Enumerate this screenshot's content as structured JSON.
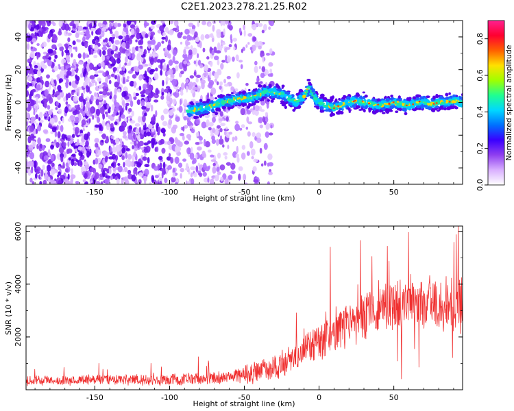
{
  "title": "C2E1.2023.278.21.25.R02",
  "colors": {
    "snr_line": "#f03030",
    "spectral_base": "#7a22ee",
    "spectral_ridge": "#2060ff"
  },
  "chart_data": [
    {
      "type": "heatmap",
      "title": "",
      "xlabel": "Height of straight line (km)",
      "ylabel": "Frequency (Hz)",
      "xlim": [
        -196,
        96
      ],
      "ylim": [
        -50,
        50
      ],
      "xticks": [
        "-150",
        "-100",
        "-50",
        "0",
        "50"
      ],
      "xtick_values": [
        -150,
        -100,
        -50,
        0,
        50
      ],
      "yticks": [
        "-40",
        "-20",
        "0",
        "20",
        "40"
      ],
      "ytick_values": [
        -40,
        -20,
        0,
        20,
        40
      ],
      "ridge": {
        "x": [
          -85,
          -75,
          -65,
          -55,
          -45,
          -40,
          -35,
          -30,
          -25,
          -20,
          -15,
          -10,
          -7,
          -3,
          0,
          5,
          10,
          15,
          20,
          25,
          30,
          35,
          40,
          45,
          50,
          55,
          60,
          65,
          70,
          75,
          80,
          85,
          90,
          95
        ],
        "y": [
          -5,
          -3,
          0,
          2,
          3,
          5,
          7,
          6,
          5,
          2,
          0,
          4,
          9,
          3,
          0,
          -2,
          -3,
          -2,
          0,
          1,
          0,
          -1,
          -2,
          -1,
          0,
          -1,
          -2,
          0,
          0,
          -1,
          0,
          0,
          1,
          0
        ]
      },
      "colorbar": {
        "label": "Normalized spectral amplitude",
        "range": [
          0,
          0.9
        ],
        "ticks": [
          "0.0",
          "0.2",
          "0.4",
          "0.6",
          "0.8"
        ],
        "tick_values": [
          0,
          0.2,
          0.4,
          0.6,
          0.8
        ],
        "colors": [
          "#ffffff",
          "#d9b0ff",
          "#9040f0",
          "#3a00ff",
          "#0070ff",
          "#00d8ff",
          "#20ff90",
          "#a0ff00",
          "#ffe000",
          "#ff6000",
          "#ff0030",
          "#ff2090"
        ]
      },
      "grid": false
    },
    {
      "type": "line",
      "title": "",
      "xlabel": "Height of straight line (km)",
      "ylabel": "SNR (10 * v/v)",
      "xlim": [
        -196,
        96
      ],
      "ylim": [
        0,
        6200
      ],
      "xticks": [
        "-150",
        "-100",
        "-50",
        "0",
        "50"
      ],
      "xtick_values": [
        -150,
        -100,
        -50,
        0,
        50
      ],
      "yticks": [
        "2000",
        "4000",
        "6000"
      ],
      "ytick_values": [
        2000,
        4000,
        6000
      ],
      "trend": {
        "x": [
          -196,
          -150,
          -100,
          -80,
          -70,
          -60,
          -50,
          -40,
          -30,
          -20,
          -10,
          0,
          10,
          20,
          30,
          40,
          50,
          60,
          70,
          80,
          90,
          96
        ],
        "y": [
          350,
          370,
          380,
          420,
          450,
          500,
          600,
          700,
          850,
          1200,
          1550,
          1850,
          2150,
          2500,
          2750,
          3100,
          3300,
          3300,
          3200,
          3250,
          3200,
          3250
        ]
      },
      "spread": {
        "x": [
          -196,
          -60,
          -30,
          0,
          40,
          96
        ],
        "y": [
          150,
          220,
          450,
          650,
          900,
          900
        ]
      },
      "grid": false
    }
  ]
}
